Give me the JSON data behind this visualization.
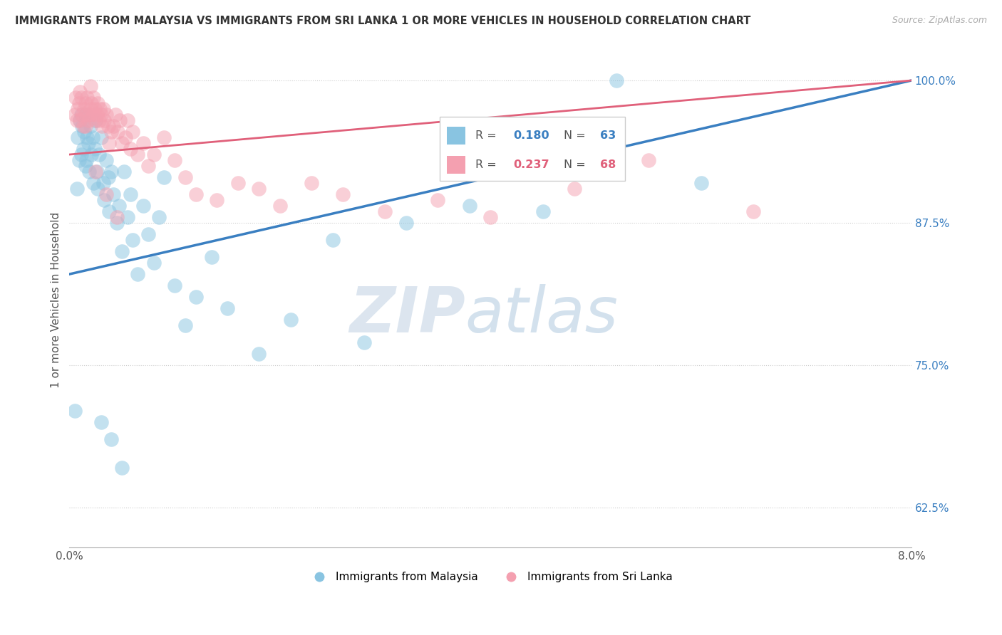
{
  "title": "IMMIGRANTS FROM MALAYSIA VS IMMIGRANTS FROM SRI LANKA 1 OR MORE VEHICLES IN HOUSEHOLD CORRELATION CHART",
  "source": "Source: ZipAtlas.com",
  "ylabel": "1 or more Vehicles in Household",
  "xmin": 0.0,
  "xmax": 8.0,
  "ymin": 59.0,
  "ymax": 102.5,
  "yticks": [
    62.5,
    75.0,
    87.5,
    100.0
  ],
  "malaysia_color": "#89c4e1",
  "srilanka_color": "#f4a0b0",
  "malaysia_line_color": "#3a7fc1",
  "srilanka_line_color": "#e0607a",
  "malaysia_R": 0.18,
  "malaysia_N": 63,
  "srilanka_R": 0.237,
  "srilanka_N": 68,
  "legend_R_color_malaysia": "#3a7fc1",
  "legend_R_color_srilanka": "#e0607a",
  "legend_N_color_malaysia": "#3a7fc1",
  "legend_N_color_srilanka": "#e0607a",
  "ytick_color": "#3a7fc1",
  "background_color": "#ffffff",
  "grid_color": "#cccccc",
  "watermark_text": "ZIPatlas",
  "marker_size": 220,
  "alpha": 0.5,
  "mal_line_y0": 83.0,
  "mal_line_y1": 100.0,
  "sri_line_y0": 93.5,
  "sri_line_y1": 100.0
}
